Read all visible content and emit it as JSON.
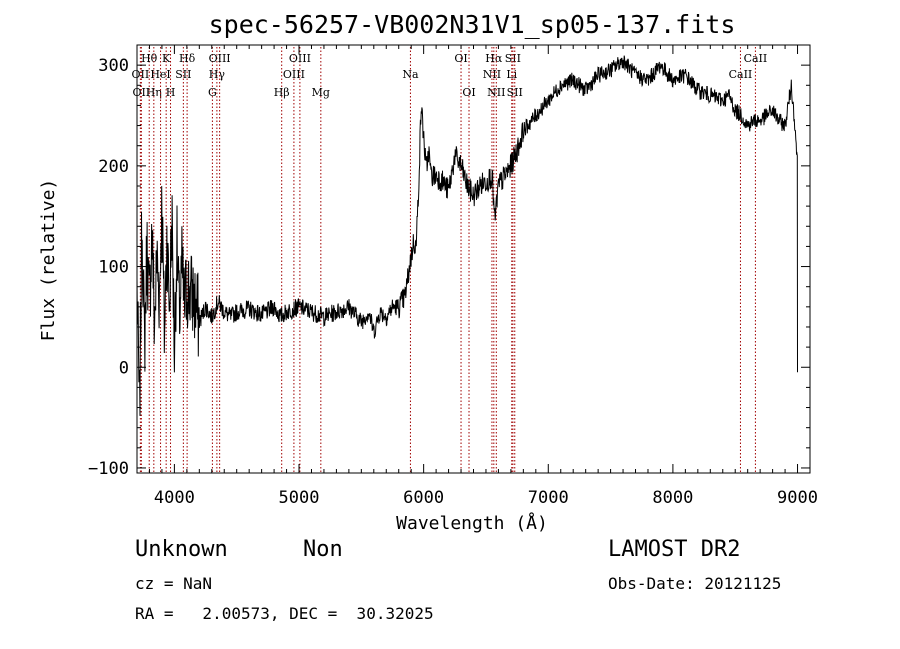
{
  "chart_data": {
    "type": "line",
    "title": "spec-56257-VB002N31V1_sp05-137.fits",
    "xlabel": "Wavelength (Å)",
    "ylabel": "Flux (relative)",
    "xlim": [
      3700,
      9100
    ],
    "ylim": [
      -105,
      320
    ],
    "x_ticks": [
      4000,
      5000,
      6000,
      7000,
      8000,
      9000
    ],
    "y_ticks": [
      -100,
      0,
      100,
      200,
      300
    ],
    "grid": false,
    "series": [
      {
        "color": "#000000",
        "x": [
          3700,
          3720,
          3740,
          3760,
          3780,
          3800,
          3820,
          3840,
          3860,
          3880,
          3900,
          3920,
          3940,
          3960,
          3980,
          4000,
          4020,
          4040,
          4060,
          4080,
          4100,
          4150,
          4200,
          4250,
          4300,
          4350,
          4400,
          4450,
          4500,
          4600,
          4700,
          4800,
          4850,
          4900,
          5000,
          5100,
          5200,
          5300,
          5400,
          5500,
          5560,
          5600,
          5650,
          5700,
          5750,
          5800,
          5850,
          5900,
          5920,
          5940,
          5960,
          5980,
          6000,
          6020,
          6040,
          6060,
          6100,
          6150,
          6200,
          6250,
          6300,
          6350,
          6400,
          6450,
          6500,
          6550,
          6570,
          6600,
          6650,
          6700,
          6750,
          6800,
          6900,
          7000,
          7100,
          7200,
          7300,
          7400,
          7500,
          7600,
          7700,
          7800,
          7900,
          8000,
          8100,
          8200,
          8300,
          8400,
          8450,
          8500,
          8550,
          8600,
          8650,
          8700,
          8750,
          8800,
          8850,
          8900,
          8950,
          8980,
          9000
        ],
        "y": [
          80,
          -50,
          150,
          20,
          120,
          60,
          140,
          40,
          110,
          70,
          165,
          30,
          130,
          60,
          150,
          20,
          120,
          50,
          100,
          60,
          80,
          70,
          45,
          60,
          50,
          65,
          55,
          50,
          55,
          58,
          52,
          60,
          50,
          55,
          60,
          55,
          50,
          55,
          60,
          45,
          55,
          35,
          55,
          50,
          60,
          60,
          70,
          110,
          125,
          120,
          180,
          260,
          230,
          195,
          215,
          190,
          190,
          185,
          175,
          210,
          200,
          180,
          170,
          180,
          185,
          190,
          145,
          180,
          190,
          200,
          215,
          235,
          250,
          265,
          280,
          285,
          275,
          290,
          295,
          305,
          290,
          285,
          300,
          285,
          290,
          275,
          270,
          265,
          270,
          255,
          250,
          240,
          245,
          245,
          250,
          255,
          245,
          240,
          280,
          240,
          200
        ]
      }
    ],
    "lines": [
      {
        "wavelength": 3727,
        "label": "OII",
        "row": 2
      },
      {
        "wavelength": 3735,
        "label": "OII",
        "row": 3
      },
      {
        "wavelength": 3798,
        "label": "Hθ",
        "row": 1
      },
      {
        "wavelength": 3835,
        "label": "Hη",
        "row": 3
      },
      {
        "wavelength": 3889,
        "label": "HeI",
        "row": 2
      },
      {
        "wavelength": 3934,
        "label": "K",
        "row": 1
      },
      {
        "wavelength": 3969,
        "label": "H",
        "row": 3
      },
      {
        "wavelength": 4072,
        "label": "SII",
        "row": 2
      },
      {
        "wavelength": 4102,
        "label": "Hδ",
        "row": 1
      },
      {
        "wavelength": 4305,
        "label": "G",
        "row": 3
      },
      {
        "wavelength": 4341,
        "label": "Hγ",
        "row": 2
      },
      {
        "wavelength": 4363,
        "label": "OIII",
        "row": 1
      },
      {
        "wavelength": 4861,
        "label": "Hβ",
        "row": 3
      },
      {
        "wavelength": 4959,
        "label": "OIII",
        "row": 2
      },
      {
        "wavelength": 5007,
        "label": "OIII",
        "row": 1
      },
      {
        "wavelength": 5175,
        "label": "Mg",
        "row": 3
      },
      {
        "wavelength": 5894,
        "label": "Na",
        "row": 2
      },
      {
        "wavelength": 6300,
        "label": "OI",
        "row": 1
      },
      {
        "wavelength": 6364,
        "label": "OI",
        "row": 3
      },
      {
        "wavelength": 6548,
        "label": "NII",
        "row": 2
      },
      {
        "wavelength": 6563,
        "label": "Hα",
        "row": 1
      },
      {
        "wavelength": 6583,
        "label": "NII",
        "row": 3
      },
      {
        "wavelength": 6707,
        "label": "Li",
        "row": 2
      },
      {
        "wavelength": 6716,
        "label": "SII",
        "row": 1
      },
      {
        "wavelength": 6731,
        "label": "SII",
        "row": 3
      },
      {
        "wavelength": 8542,
        "label": "CaII",
        "row": 2
      },
      {
        "wavelength": 8662,
        "label": "CaII",
        "row": 1
      }
    ],
    "line_color": "#a00000"
  },
  "captions": {
    "class_label": "Unknown",
    "subclass_label": "Non",
    "survey_label": "LAMOST DR2",
    "cz_text": "cz = NaN",
    "obs_date_text": "Obs-Date: 20121125",
    "coords_text": "RA =   2.00573, DEC =  30.32025"
  }
}
